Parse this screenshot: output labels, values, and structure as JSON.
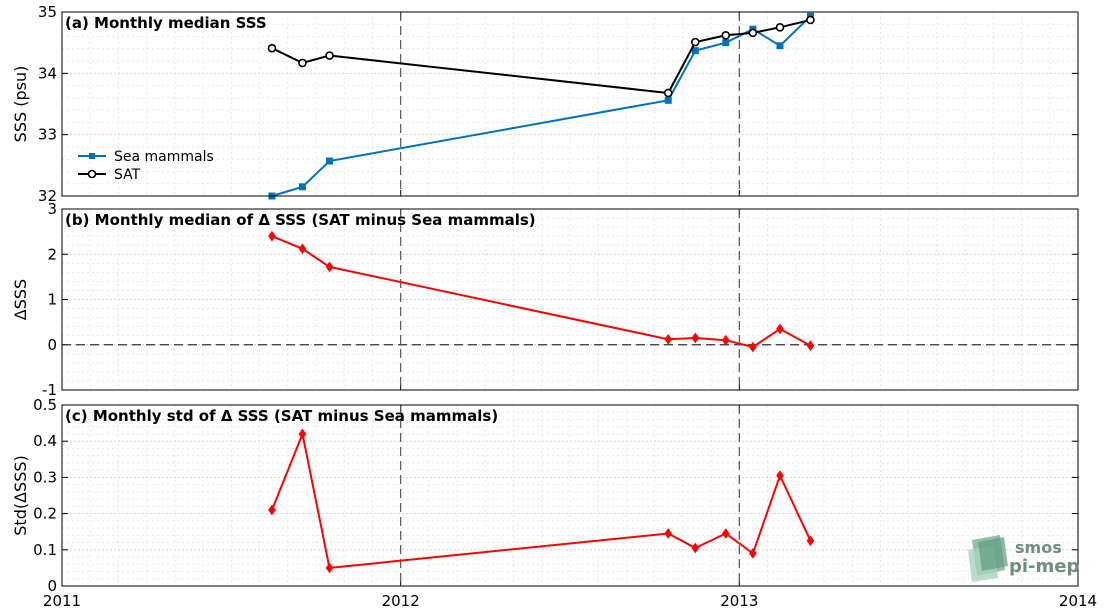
{
  "chart_data": [
    {
      "type": "line",
      "title": "(a) Monthly median SSS",
      "ylabel": "SSS (psu)",
      "xlim": [
        2011,
        2014
      ],
      "ylim": [
        32,
        35
      ],
      "yticks": [
        32,
        33,
        34,
        35
      ],
      "grid": true,
      "legend_position": "bottom-left",
      "vlines": [
        2012,
        2013
      ],
      "series": [
        {
          "name": "Sea mammals",
          "color": "#0072BD",
          "marker": "square",
          "x": [
            2011.62,
            2011.71,
            2011.79,
            2012.79,
            2012.87,
            2012.96,
            2013.04,
            2013.12,
            2013.21
          ],
          "y": [
            32.0,
            32.15,
            32.57,
            33.56,
            34.37,
            34.5,
            34.72,
            34.45,
            34.93
          ]
        },
        {
          "name": "SAT",
          "color": "#000000",
          "marker": "circle",
          "x": [
            2011.62,
            2011.71,
            2011.79,
            2012.79,
            2012.87,
            2012.96,
            2013.04,
            2013.12,
            2013.21
          ],
          "y": [
            34.41,
            34.17,
            34.29,
            33.68,
            34.51,
            34.62,
            34.66,
            34.75,
            34.87
          ]
        }
      ]
    },
    {
      "type": "line",
      "title": "(b) Monthly median of Δ SSS (SAT minus Sea mammals)",
      "ylabel": "ΔSSS",
      "xlim": [
        2011,
        2014
      ],
      "ylim": [
        -1,
        3
      ],
      "yticks": [
        -1,
        0,
        1,
        2,
        3
      ],
      "grid": true,
      "vlines": [
        2012,
        2013
      ],
      "hline": 0,
      "series": [
        {
          "color": "#FF0000",
          "marker": "diamond",
          "x": [
            2011.62,
            2011.71,
            2011.79,
            2012.79,
            2012.87,
            2012.96,
            2013.04,
            2013.12,
            2013.21
          ],
          "y": [
            2.4,
            2.12,
            1.72,
            0.12,
            0.15,
            0.1,
            -0.05,
            0.35,
            -0.02
          ]
        }
      ]
    },
    {
      "type": "line",
      "title": "(c) Monthly std of Δ SSS (SAT minus Sea mammals)",
      "ylabel": "Std(ΔSSS)",
      "xlim": [
        2011,
        2014
      ],
      "ylim": [
        0,
        0.5
      ],
      "yticks": [
        0,
        0.1,
        0.2,
        0.3,
        0.4,
        0.5
      ],
      "grid": true,
      "vlines": [
        2012,
        2013
      ],
      "xticks": [
        2011,
        2012,
        2013,
        2014
      ],
      "series": [
        {
          "color": "#FF0000",
          "marker": "diamond",
          "x": [
            2011.62,
            2011.71,
            2011.79,
            2012.79,
            2012.87,
            2012.96,
            2013.04,
            2013.12,
            2013.21
          ],
          "y": [
            0.21,
            0.42,
            0.05,
            0.145,
            0.105,
            0.145,
            0.09,
            0.305,
            0.125
          ]
        }
      ]
    }
  ],
  "logo": {
    "line1": "smos",
    "line2": "pi-mep"
  }
}
